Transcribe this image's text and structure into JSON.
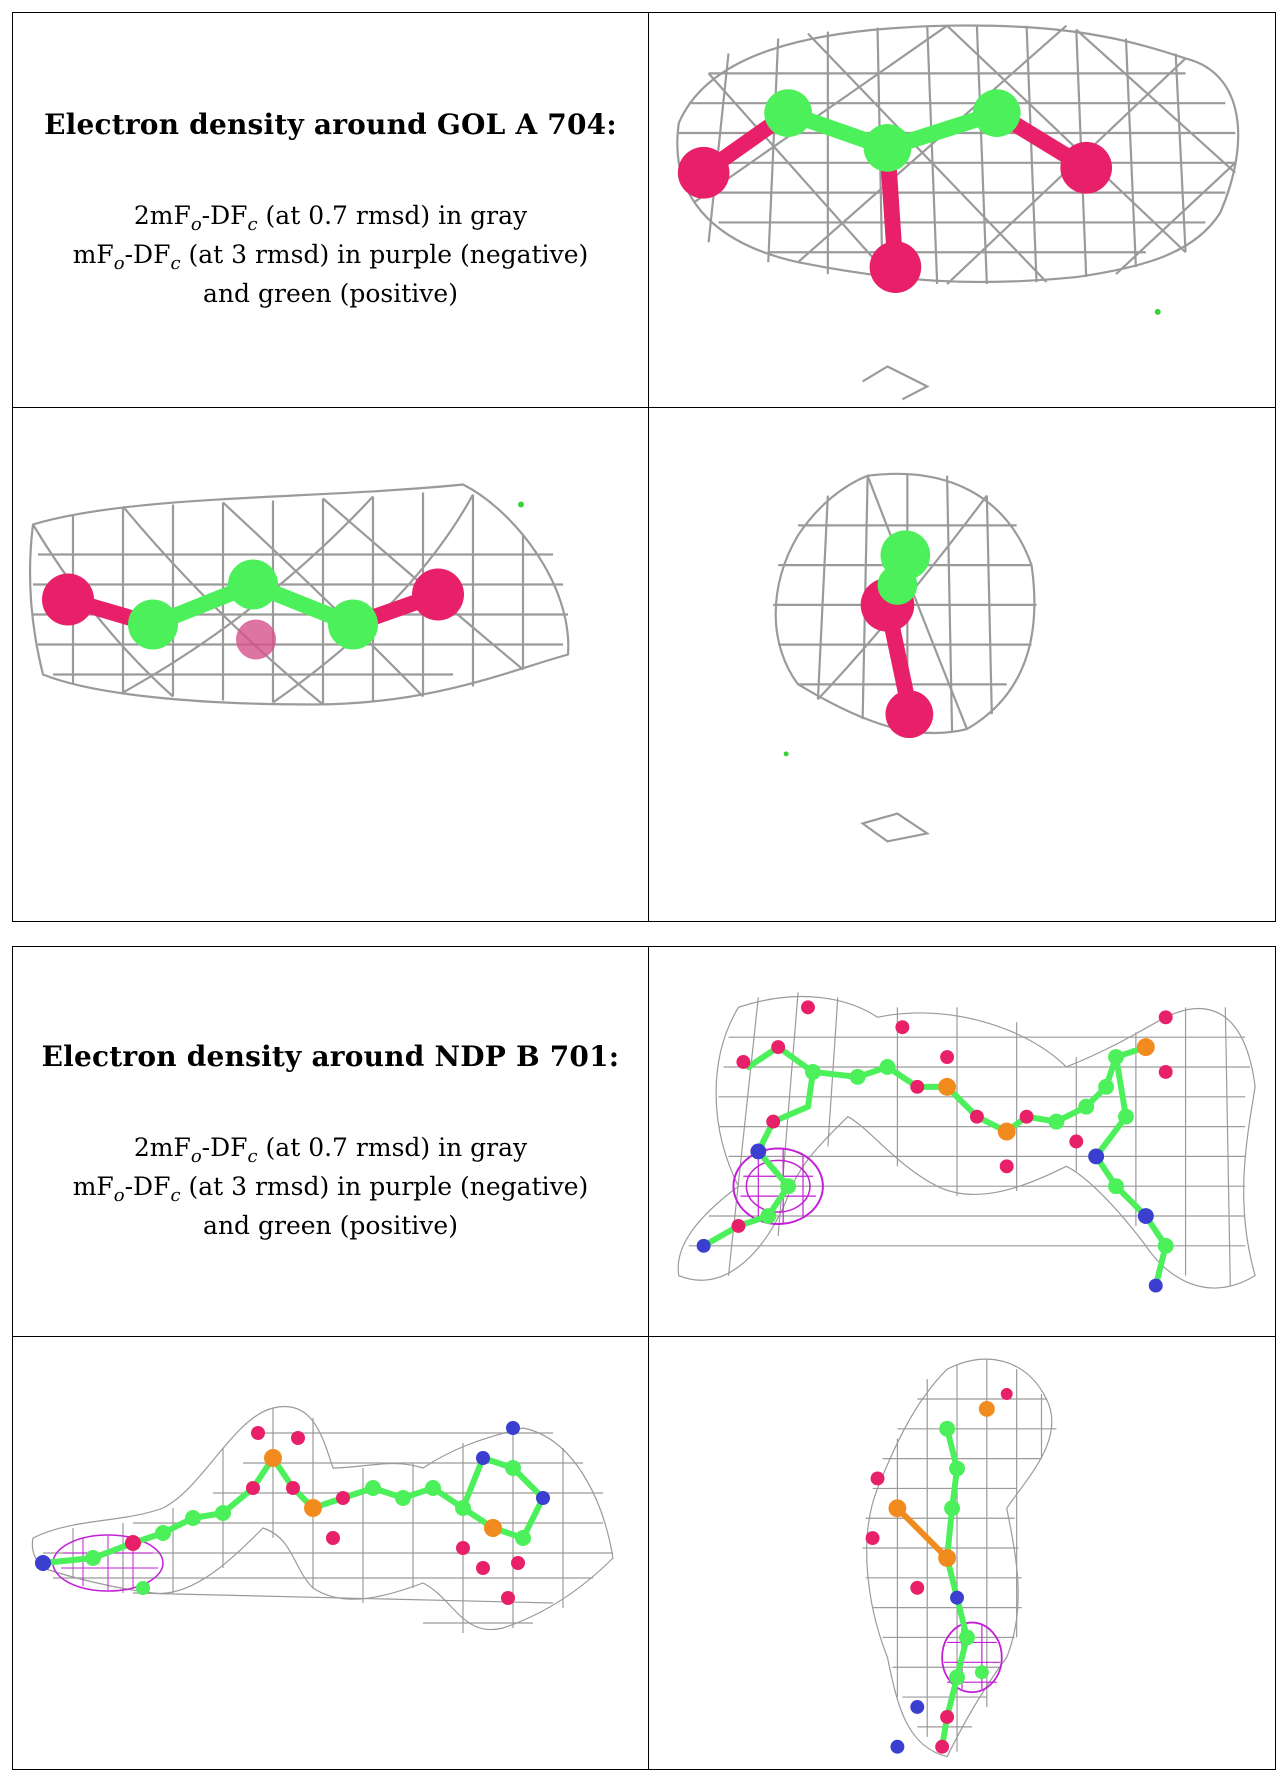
{
  "sections": [
    {
      "title": "Electron density around GOL A 704:",
      "line1_pre": "2mF",
      "line1_sub1": "o",
      "line1_mid": "-DF",
      "line1_sub2": "c",
      "line1_post": " (at 0.7 rmsd) in gray",
      "line2_pre": "mF",
      "line2_sub1": "o",
      "line2_mid": "-DF",
      "line2_sub2": "c",
      "line2_post": " (at 3 rmsd) in purple (negative)",
      "line3": "and green (positive)"
    },
    {
      "title": "Electron density around NDP B 701:",
      "line1_pre": "2mF",
      "line1_sub1": "o",
      "line1_mid": "-DF",
      "line1_sub2": "c",
      "line1_post": " (at 0.7 rmsd) in gray",
      "line2_pre": "mF",
      "line2_sub1": "o",
      "line2_mid": "-DF",
      "line2_sub2": "c",
      "line2_post": " (at 3 rmsd) in purple (negative)",
      "line3": "and green (positive)"
    }
  ],
  "colors": {
    "carbon": "#4cf05a",
    "oxygen": "#e8206a",
    "nitrogen": "#3a3fd0",
    "phosphorus": "#f28b1e",
    "mesh_gray": "#9a9a9a",
    "mesh_negative": "#c21fd6",
    "mesh_positive": "#3bd13b"
  }
}
